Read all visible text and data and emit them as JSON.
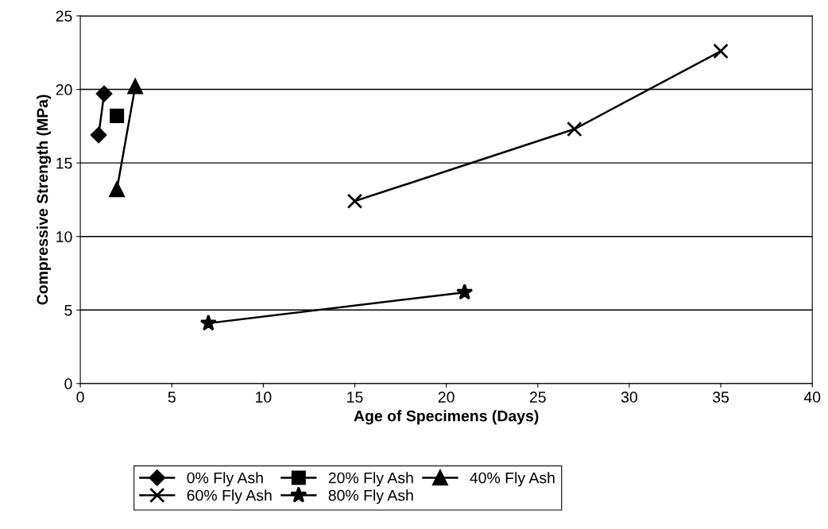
{
  "chart_data": {
    "type": "line",
    "xlabel": "Age of Specimens (Days)",
    "ylabel": "Compressive Strength (MPa)",
    "xlim": [
      0,
      40
    ],
    "xticks": [
      0,
      5,
      10,
      15,
      20,
      25,
      30,
      35,
      40
    ],
    "ylim": [
      0,
      25
    ],
    "yticks": [
      0,
      5,
      10,
      15,
      20,
      25
    ],
    "grid": "y",
    "legend": "bottom",
    "series": [
      {
        "name": "0% Fly Ash",
        "color": "#000000",
        "marker": "diamond",
        "x": [
          1,
          1.3
        ],
        "values": [
          16.9,
          19.7
        ]
      },
      {
        "name": "20% Fly Ash",
        "color": "#000000",
        "marker": "square",
        "x": [
          2
        ],
        "values": [
          18.2
        ]
      },
      {
        "name": "40% Fly Ash",
        "color": "#000000",
        "marker": "triangle",
        "x": [
          2,
          3
        ],
        "values": [
          13.2,
          20.2
        ]
      },
      {
        "name": "60% Fly Ash",
        "color": "#000000",
        "marker": "cross",
        "x": [
          15,
          27,
          35
        ],
        "values": [
          12.4,
          17.3,
          22.6
        ]
      },
      {
        "name": "80% Fly Ash",
        "color": "#000000",
        "marker": "star",
        "x": [
          7,
          21
        ],
        "values": [
          4.1,
          6.2
        ]
      }
    ]
  }
}
